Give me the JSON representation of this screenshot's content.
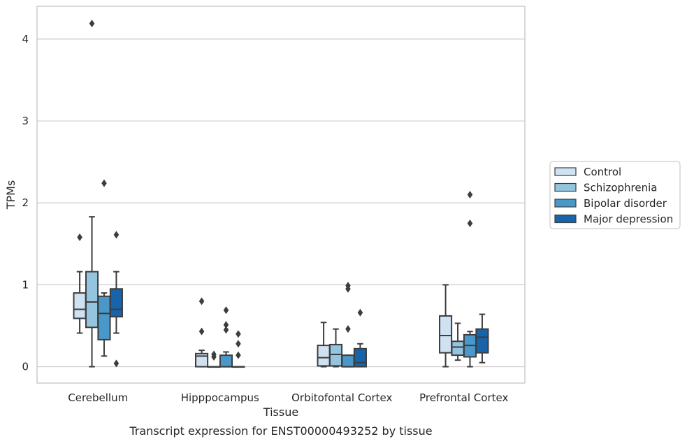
{
  "chart_data": {
    "type": "box",
    "title": "",
    "caption": "Transcript expression for ENST00000493252 by tissue",
    "xlabel": "Tissue",
    "ylabel": "TPMs",
    "ylim": [
      -0.2,
      4.4
    ],
    "yticks": [
      0,
      1,
      2,
      3,
      4
    ],
    "grid": "horizontal",
    "legend_position": "right",
    "categories": [
      "Cerebellum",
      "Hipppocampus",
      "Orbitofontal Cortex",
      "Prefrontal Cortex"
    ],
    "series": [
      {
        "name": "Control",
        "color": "#d0e1f2",
        "boxes": [
          {
            "q1": 0.59,
            "median": 0.7,
            "q3": 0.9,
            "whisker_low": 0.41,
            "whisker_high": 1.16,
            "outliers": [
              1.58
            ]
          },
          {
            "q1": 0.0,
            "median": 0.13,
            "q3": 0.16,
            "whisker_low": 0.0,
            "whisker_high": 0.2,
            "outliers": [
              0.43,
              0.8
            ]
          },
          {
            "q1": 0.01,
            "median": 0.11,
            "q3": 0.26,
            "whisker_low": 0.0,
            "whisker_high": 0.54,
            "outliers": []
          },
          {
            "q1": 0.17,
            "median": 0.38,
            "q3": 0.62,
            "whisker_low": 0.0,
            "whisker_high": 1.0,
            "outliers": []
          }
        ]
      },
      {
        "name": "Schizophrenia",
        "color": "#94c4df",
        "boxes": [
          {
            "q1": 0.48,
            "median": 0.79,
            "q3": 1.16,
            "whisker_low": 0.0,
            "whisker_high": 1.83,
            "outliers": [
              4.19
            ]
          },
          {
            "q1": 0.0,
            "median": 0.0,
            "q3": 0.0,
            "whisker_low": 0.0,
            "whisker_high": 0.0,
            "outliers": [
              0.12,
              0.15
            ]
          },
          {
            "q1": 0.01,
            "median": 0.15,
            "q3": 0.27,
            "whisker_low": 0.0,
            "whisker_high": 0.46,
            "outliers": []
          },
          {
            "q1": 0.14,
            "median": 0.24,
            "q3": 0.31,
            "whisker_low": 0.08,
            "whisker_high": 0.53,
            "outliers": []
          }
        ]
      },
      {
        "name": "Bipolar disorder",
        "color": "#4a98c9",
        "boxes": [
          {
            "q1": 0.33,
            "median": 0.65,
            "q3": 0.86,
            "whisker_low": 0.13,
            "whisker_high": 0.9,
            "outliers": [
              2.24
            ]
          },
          {
            "q1": 0.0,
            "median": 0.0,
            "q3": 0.14,
            "whisker_low": 0.0,
            "whisker_high": 0.18,
            "outliers": [
              0.45,
              0.51,
              0.69
            ]
          },
          {
            "q1": 0.0,
            "median": 0.0,
            "q3": 0.14,
            "whisker_low": 0.0,
            "whisker_high": 0.14,
            "outliers": [
              0.46,
              0.95,
              0.99
            ]
          },
          {
            "q1": 0.12,
            "median": 0.26,
            "q3": 0.39,
            "whisker_low": 0.0,
            "whisker_high": 0.43,
            "outliers": [
              1.75,
              2.1
            ]
          }
        ]
      },
      {
        "name": "Major depression",
        "color": "#1764ab",
        "boxes": [
          {
            "q1": 0.61,
            "median": 0.7,
            "q3": 0.95,
            "whisker_low": 0.41,
            "whisker_high": 1.16,
            "outliers": [
              0.04,
              1.61
            ]
          },
          {
            "q1": 0.0,
            "median": 0.0,
            "q3": 0.0,
            "whisker_low": 0.0,
            "whisker_high": 0.0,
            "outliers": [
              0.14,
              0.28,
              0.4
            ]
          },
          {
            "q1": 0.0,
            "median": 0.05,
            "q3": 0.22,
            "whisker_low": 0.0,
            "whisker_high": 0.28,
            "outliers": [
              0.66
            ]
          },
          {
            "q1": 0.17,
            "median": 0.36,
            "q3": 0.46,
            "whisker_low": 0.05,
            "whisker_high": 0.64,
            "outliers": []
          }
        ]
      }
    ]
  }
}
